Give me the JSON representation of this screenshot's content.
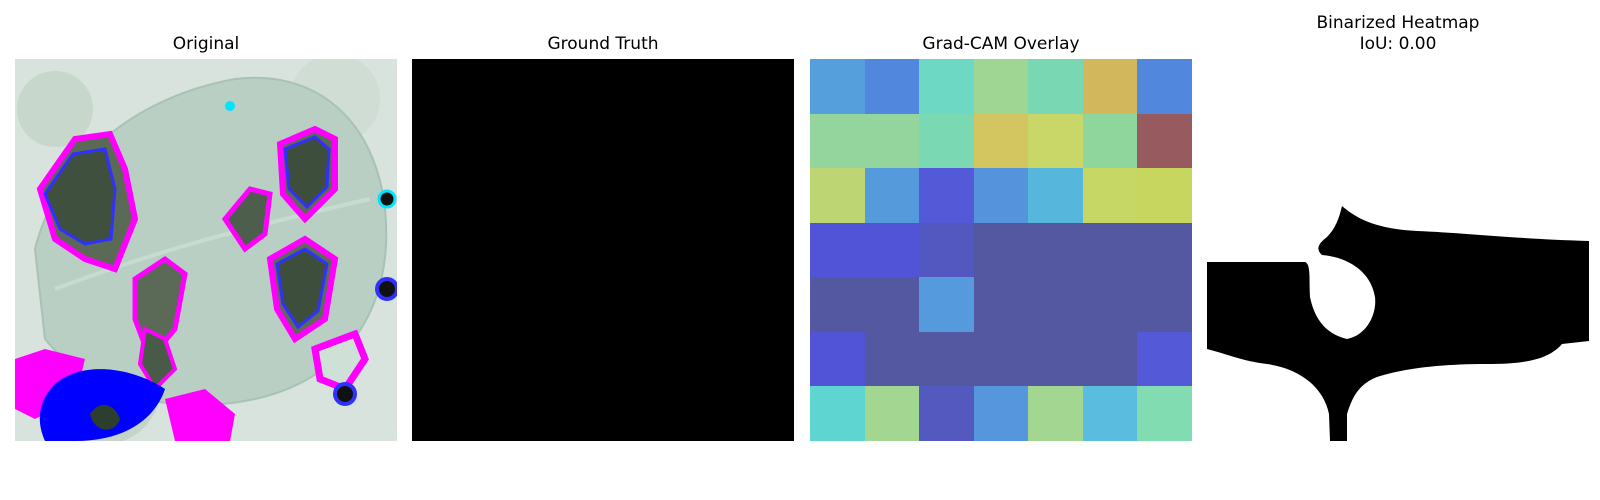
{
  "panels": {
    "original": {
      "title": "Original"
    },
    "ground_truth": {
      "title": "Ground Truth"
    },
    "gradcam": {
      "title": "Grad-CAM Overlay",
      "grid": [
        [
          "#559fdc",
          "#5188dd",
          "#6dd8c4",
          "#a0d694",
          "#79d7b4",
          "#d2b75d",
          "#5188dd"
        ],
        [
          "#93d59c",
          "#93d59c",
          "#7ad8b3",
          "#d3c560",
          "#c8d768",
          "#8fd69d",
          "#975a5e"
        ],
        [
          "#bdd673",
          "#559bdb",
          "#5459d8",
          "#5594dd",
          "#57b6dc",
          "#c7d766",
          "#c6d65f"
        ],
        [
          "#5254d8",
          "#5254d8",
          "#5357c0",
          "#5458a0",
          "#5458a0",
          "#5458a0",
          "#5458a0"
        ],
        [
          "#5458a0",
          "#5458a0",
          "#569ade",
          "#5458a0",
          "#5458a0",
          "#5458a0",
          "#5458a0"
        ],
        [
          "#5254d8",
          "#5458a0",
          "#5458a0",
          "#5458a0",
          "#5458a0",
          "#5458a0",
          "#5459d8"
        ],
        [
          "#5fd5d2",
          "#a2d691",
          "#5459c0",
          "#5596dd",
          "#a2d691",
          "#5abde0",
          "#82dcb1"
        ]
      ]
    },
    "binarized": {
      "title_line1": "Binarized Heatmap",
      "title_line2": "IoU: 0.00"
    }
  },
  "colors": {
    "mask": "#000000",
    "background": "#ffffff"
  }
}
